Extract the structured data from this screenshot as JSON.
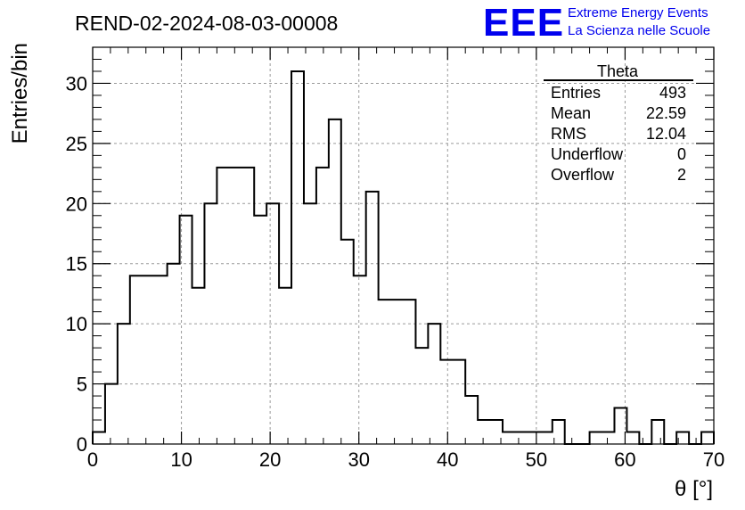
{
  "header": {
    "run_title": "REND-02-2024-08-03-00008",
    "logo": {
      "mark": "EEE",
      "line1": "Extreme Energy Events",
      "line2": "La Scienza nelle Scuole",
      "color": "#0000ee"
    }
  },
  "stats_box": {
    "title": "Theta",
    "rows": [
      {
        "label": "Entries",
        "value": "493"
      },
      {
        "label": "Mean",
        "value": "22.59"
      },
      {
        "label": "RMS",
        "value": "12.04"
      },
      {
        "label": "Underflow",
        "value": "0"
      },
      {
        "label": "Overflow",
        "value": "2"
      }
    ]
  },
  "chart_data": {
    "type": "bar",
    "style": "step histogram",
    "xlabel": "θ [°]",
    "ylabel": "Entries/bin",
    "xlim": [
      0,
      70
    ],
    "ylim": [
      0,
      33
    ],
    "grid": true,
    "bin_width": 1.4,
    "x_ticks": [
      "0",
      "10",
      "20",
      "30",
      "40",
      "50",
      "60",
      "70"
    ],
    "y_ticks": [
      "0",
      "5",
      "10",
      "15",
      "20",
      "25",
      "30"
    ],
    "bin_edges_start": 0,
    "values": [
      1,
      5,
      10,
      14,
      14,
      14,
      15,
      19,
      13,
      20,
      23,
      23,
      23,
      19,
      20,
      13,
      31,
      20,
      23,
      27,
      17,
      14,
      21,
      12,
      12,
      12,
      8,
      10,
      7,
      7,
      4,
      2,
      2,
      1,
      1,
      1,
      1,
      2,
      0,
      0,
      1,
      1,
      3,
      1,
      0,
      2,
      0,
      1,
      0,
      1
    ]
  }
}
